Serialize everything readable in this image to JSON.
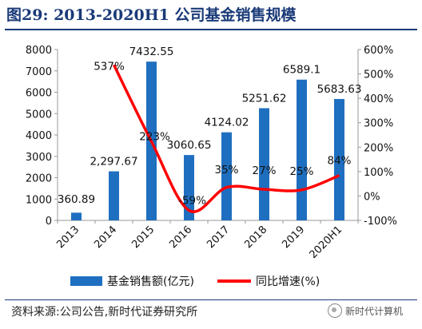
{
  "header": {
    "title": "图29:   2013-2020H1 公司基金销售规模"
  },
  "footer": {
    "source": "资料来源:公司公告,新时代证券研究所",
    "watermark": "新时代计算机"
  },
  "chart_data": {
    "type": "bar",
    "categories": [
      "2013",
      "2014",
      "2015",
      "2016",
      "2017",
      "2018",
      "2019",
      "2020H1"
    ],
    "series": [
      {
        "name": "基金销售额(亿元)",
        "type": "bar",
        "axis": "left",
        "values": [
          360.89,
          2297.67,
          7432.55,
          3060.65,
          4124.02,
          5251.62,
          6589.1,
          5683.63
        ],
        "labels": [
          "360.89",
          "2,297.67",
          "7432.55",
          "3060.65",
          "4124.02",
          "5251.62",
          "6589.1",
          "5683.63"
        ]
      },
      {
        "name": "同比增速(%)",
        "type": "line",
        "axis": "right",
        "values": [
          null,
          537,
          223,
          -59,
          35,
          27,
          25,
          84
        ],
        "labels": [
          "",
          "537%",
          "223%",
          "-59%",
          "35%",
          "27%",
          "25%",
          "84%"
        ]
      }
    ],
    "y_left": {
      "min": 0,
      "max": 8000,
      "ticks": [
        0,
        1000,
        2000,
        3000,
        4000,
        5000,
        6000,
        7000,
        8000
      ]
    },
    "y_right": {
      "min": -100,
      "max": 600,
      "ticks": [
        "-100%",
        "0%",
        "100%",
        "200%",
        "300%",
        "400%",
        "500%",
        "600%"
      ]
    },
    "colors": {
      "bar": "#1f6fc0",
      "line": "#ff0000"
    },
    "legend": "bottom",
    "grid": false
  }
}
